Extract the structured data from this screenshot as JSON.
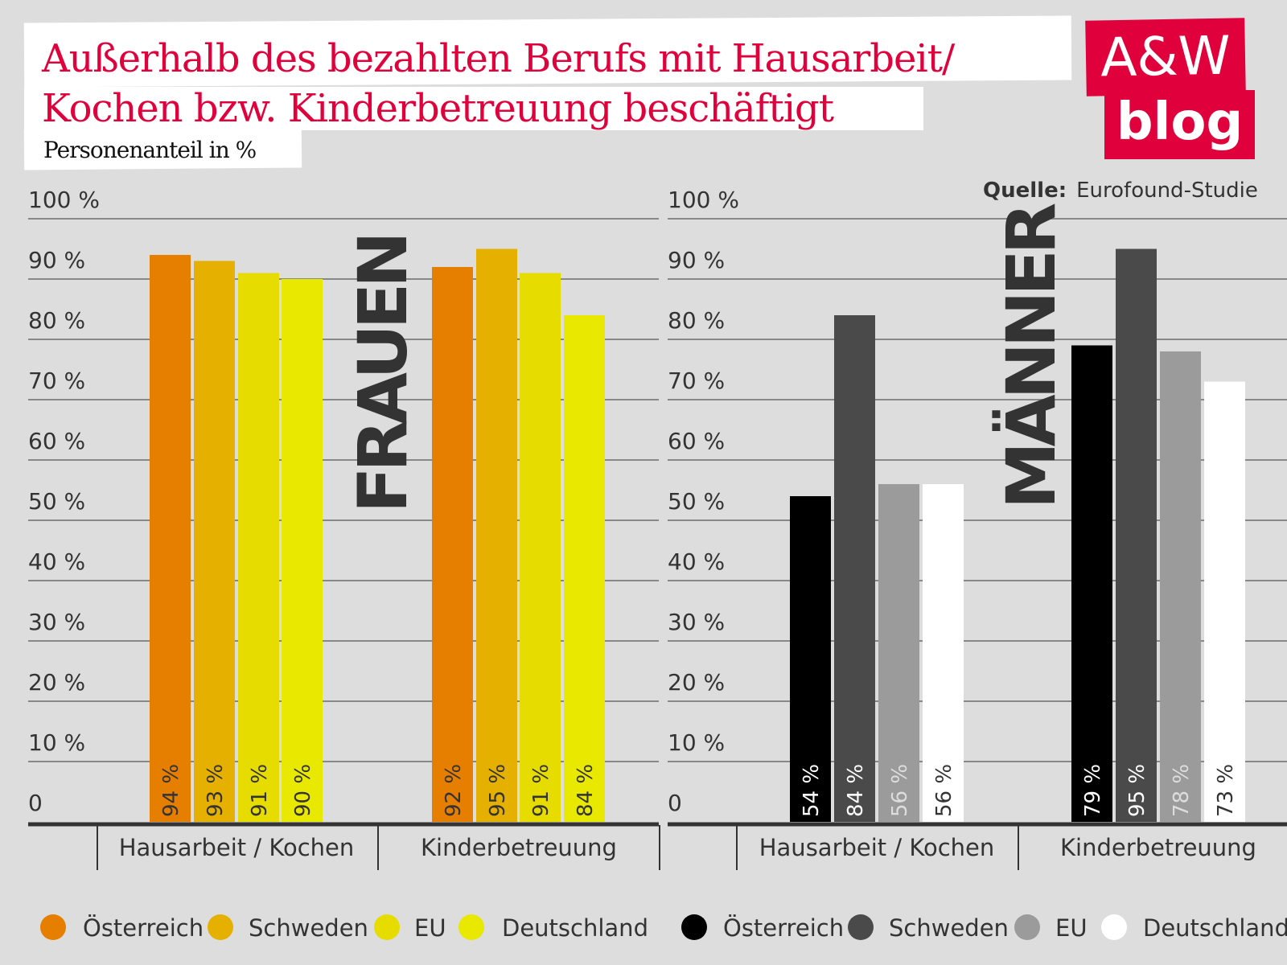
{
  "title_line1": "Außerhalb des bezahlten Berufs mit Hausarbeit/",
  "title_line2": "Kochen bzw. Kinderbetreuung beschäftigt",
  "subtitle": "Personenanteil in %",
  "logo": {
    "line1": "A&W",
    "line2": "blog",
    "color": "#e0003c"
  },
  "source": {
    "label": "Quelle:",
    "value": "Eurofound-Studie"
  },
  "chart_data": [
    {
      "type": "bar",
      "panel_label": "FRAUEN",
      "categories": [
        "Hausarbeit / Kochen",
        "Kinderbetreuung"
      ],
      "ylim": [
        0,
        100
      ],
      "yticks": [
        "0",
        "10 %",
        "20 %",
        "30 %",
        "40 %",
        "50 %",
        "60 %",
        "70 %",
        "80 %",
        "90 %",
        "100 %"
      ],
      "grid": true,
      "legend_position": "bottom",
      "series": [
        {
          "name": "Österreich",
          "color": "#e67e00",
          "values": [
            94,
            92
          ]
        },
        {
          "name": "Schweden",
          "color": "#e6b000",
          "values": [
            93,
            95
          ]
        },
        {
          "name": "EU",
          "color": "#e6dc00",
          "values": [
            91,
            91
          ]
        },
        {
          "name": "Deutschland",
          "color": "#e8e800",
          "values": [
            90,
            84
          ]
        }
      ]
    },
    {
      "type": "bar",
      "panel_label": "MÄNNER",
      "categories": [
        "Hausarbeit / Kochen",
        "Kinderbetreuung"
      ],
      "ylim": [
        0,
        100
      ],
      "yticks": [
        "0",
        "10 %",
        "20 %",
        "30 %",
        "40 %",
        "50 %",
        "60 %",
        "70 %",
        "80 %",
        "90 %",
        "100 %"
      ],
      "grid": true,
      "legend_position": "bottom",
      "series": [
        {
          "name": "Österreich",
          "color": "#000000",
          "values": [
            54,
            79
          ]
        },
        {
          "name": "Schweden",
          "color": "#4a4a4a",
          "values": [
            84,
            95
          ]
        },
        {
          "name": "EU",
          "color": "#9b9b9b",
          "values": [
            56,
            78
          ]
        },
        {
          "name": "Deutschland",
          "color": "#ffffff",
          "values": [
            56,
            73
          ]
        }
      ]
    }
  ]
}
